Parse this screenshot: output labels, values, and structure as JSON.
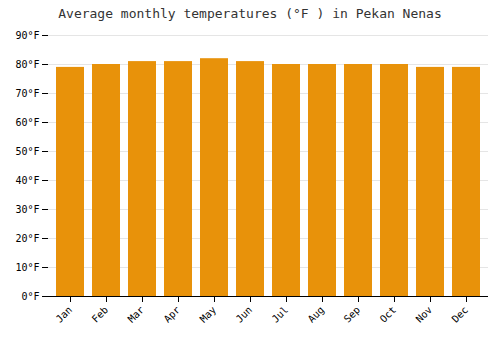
{
  "chart_data": {
    "type": "bar",
    "title": "Average monthly temperatures (°F ) in Pekan Nenas",
    "categories": [
      "Jan",
      "Feb",
      "Mar",
      "Apr",
      "May",
      "Jun",
      "Jul",
      "Aug",
      "Sep",
      "Oct",
      "Nov",
      "Dec"
    ],
    "values": [
      79,
      80,
      81,
      81,
      82,
      81,
      80,
      80,
      80,
      80,
      79,
      79
    ],
    "color": "#E8920A",
    "ylim": [
      0,
      90
    ],
    "yticks": [
      {
        "value": 0,
        "label": "0°F"
      },
      {
        "value": 10,
        "label": "10°F"
      },
      {
        "value": 20,
        "label": "20°F"
      },
      {
        "value": 30,
        "label": "30°F"
      },
      {
        "value": 40,
        "label": "40°F"
      },
      {
        "value": 50,
        "label": "50°F"
      },
      {
        "value": 60,
        "label": "60°F"
      },
      {
        "value": 70,
        "label": "70°F"
      },
      {
        "value": 80,
        "label": "80°F"
      },
      {
        "value": 90,
        "label": "90°F"
      }
    ],
    "grid": true
  }
}
